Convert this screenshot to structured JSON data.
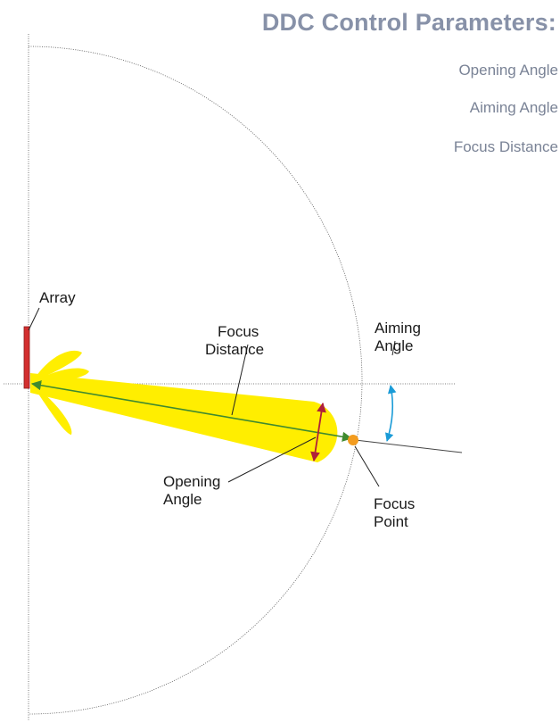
{
  "header": {
    "title": "DDC Control Parameters:",
    "parameters": [
      "Opening Angle",
      "Aiming Angle",
      "Focus Distance"
    ]
  },
  "labels": {
    "array": "Array",
    "focus_distance": [
      "Focus",
      "Distance"
    ],
    "aiming_angle": [
      "Aiming",
      "Angle"
    ],
    "opening_angle": [
      "Opening",
      "Angle"
    ],
    "focus_point": [
      "Focus",
      "Point"
    ]
  },
  "colors": {
    "header_text": "#8791a8",
    "param_text": "#7a8396",
    "beam": "#ffee00",
    "array_bar": "#d32f2f",
    "focus_line": "#3f8a2f",
    "opening_arrow": "#b0203a",
    "aiming_arrow": "#1a9bd7",
    "focus_dot": "#f39c1f"
  }
}
